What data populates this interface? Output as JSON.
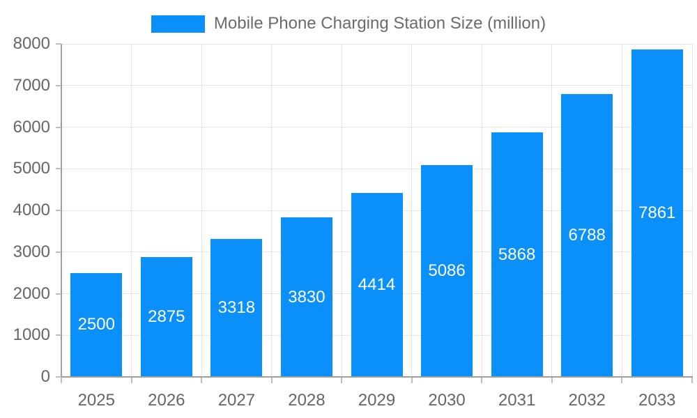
{
  "legend": {
    "label": "Mobile Phone Charging Station Size (million)"
  },
  "chart_data": {
    "type": "bar",
    "title": "Mobile Phone Charging Station Size (million)",
    "series_name": "Mobile Phone Charging Station Size (million)",
    "categories": [
      "2025",
      "2026",
      "2027",
      "2028",
      "2029",
      "2030",
      "2031",
      "2032",
      "2033"
    ],
    "values": [
      2500,
      2875,
      3318,
      3830,
      4414,
      5086,
      5868,
      6788,
      7861
    ],
    "value_labels": [
      "2500",
      "2875",
      "3318",
      "3830",
      "4414",
      "5086",
      "5868",
      "6788",
      "7861"
    ],
    "xlabel": "",
    "ylabel": "",
    "ylim": [
      0,
      8000
    ],
    "y_tick_interval": 1000,
    "y_tick_labels": [
      "0",
      "1000",
      "2000",
      "3000",
      "4000",
      "5000",
      "6000",
      "7000",
      "8000"
    ],
    "grid": true,
    "legend_position": "top-center",
    "colors": {
      "bar_fill": "#0b90fa",
      "bar_value_text": "#ffffff",
      "axis_line": "#9e9e9e",
      "tick_mark": "#bdbdbd",
      "gridline": "#e3e3e3",
      "axis_text": "#666666",
      "legend_text": "#6b6b6b",
      "background": "#ffffff"
    }
  }
}
